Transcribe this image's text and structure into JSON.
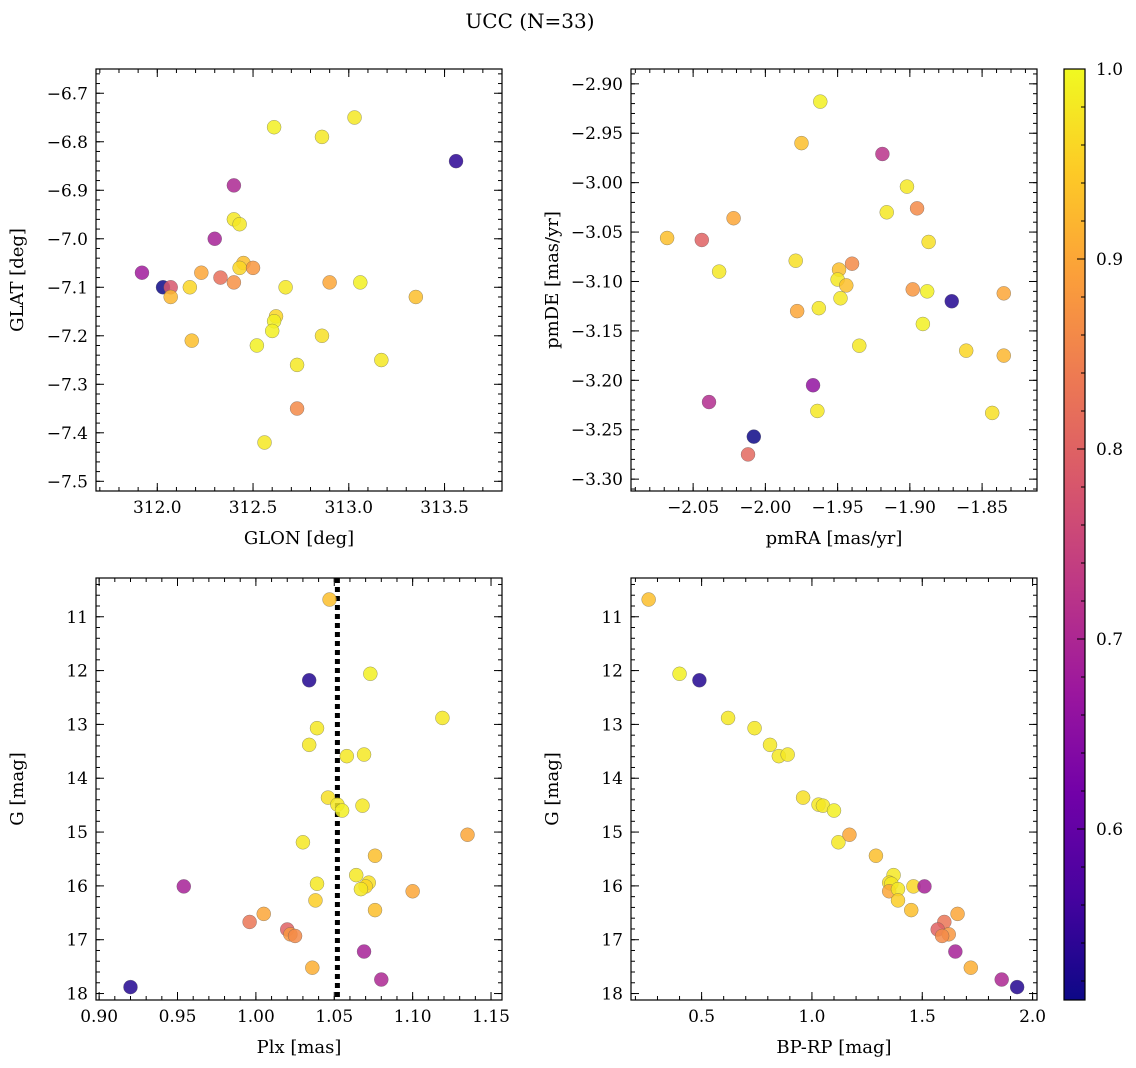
{
  "figure": {
    "title": "UCC (N=33)"
  },
  "colorbar": {
    "min": 0.51,
    "max": 1.0,
    "ticks": [
      0.6,
      0.7,
      0.8,
      0.9,
      1.0
    ],
    "tick_labels": [
      "0.6",
      "0.7",
      "0.8",
      "0.9",
      "1.0"
    ],
    "colormap": "plasma",
    "stops": [
      "#0d0887",
      "#46039f",
      "#7201a8",
      "#9c179e",
      "#bd3786",
      "#d8576b",
      "#ed7953",
      "#fb9f3a",
      "#fdca26",
      "#f0f921"
    ]
  },
  "chart_data": [
    {
      "id": "glon-glat",
      "type": "scatter",
      "xlabel": "GLON [deg]",
      "ylabel": "GLAT [deg]",
      "xlim": [
        311.68,
        313.8
      ],
      "ylim": [
        -7.52,
        -6.65
      ],
      "y_inverted": false,
      "x_ticks": [
        312.0,
        312.5,
        313.0,
        313.5
      ],
      "x_tick_labels": [
        "312.0",
        "312.5",
        "313.0",
        "313.5"
      ],
      "y_ticks": [
        -6.7,
        -6.8,
        -6.9,
        -7.0,
        -7.1,
        -7.2,
        -7.3,
        -7.4,
        -7.5
      ],
      "y_tick_labels": [
        "−6.7",
        "−6.8",
        "−6.9",
        "−7.0",
        "−7.1",
        "−7.2",
        "−7.3",
        "−7.4",
        "−7.5"
      ],
      "x_minor_step": 0.1,
      "y_minor_step": 0.02,
      "points": [
        {
          "x": 312.61,
          "y": -6.77,
          "c": 0.99
        },
        {
          "x": 312.86,
          "y": -6.79,
          "c": 0.98
        },
        {
          "x": 313.03,
          "y": -6.75,
          "c": 0.98
        },
        {
          "x": 313.56,
          "y": -6.84,
          "c": 0.54
        },
        {
          "x": 312.4,
          "y": -6.89,
          "c": 0.7
        },
        {
          "x": 312.4,
          "y": -6.96,
          "c": 0.98
        },
        {
          "x": 312.43,
          "y": -6.97,
          "c": 0.98
        },
        {
          "x": 312.3,
          "y": -7.0,
          "c": 0.69
        },
        {
          "x": 311.92,
          "y": -7.07,
          "c": 0.68
        },
        {
          "x": 312.03,
          "y": -7.1,
          "c": 0.51
        },
        {
          "x": 312.07,
          "y": -7.1,
          "c": 0.78
        },
        {
          "x": 312.07,
          "y": -7.12,
          "c": 0.92
        },
        {
          "x": 312.23,
          "y": -7.07,
          "c": 0.9
        },
        {
          "x": 312.33,
          "y": -7.08,
          "c": 0.82
        },
        {
          "x": 312.17,
          "y": -7.1,
          "c": 0.96
        },
        {
          "x": 312.4,
          "y": -7.09,
          "c": 0.87
        },
        {
          "x": 312.45,
          "y": -7.05,
          "c": 0.93
        },
        {
          "x": 312.43,
          "y": -7.06,
          "c": 0.96
        },
        {
          "x": 312.5,
          "y": -7.06,
          "c": 0.88
        },
        {
          "x": 312.67,
          "y": -7.1,
          "c": 0.98
        },
        {
          "x": 312.9,
          "y": -7.09,
          "c": 0.9
        },
        {
          "x": 313.06,
          "y": -7.09,
          "c": 0.99
        },
        {
          "x": 313.35,
          "y": -7.12,
          "c": 0.93
        },
        {
          "x": 312.18,
          "y": -7.21,
          "c": 0.93
        },
        {
          "x": 312.62,
          "y": -7.16,
          "c": 0.96
        },
        {
          "x": 312.61,
          "y": -7.17,
          "c": 0.99
        },
        {
          "x": 312.6,
          "y": -7.19,
          "c": 0.99
        },
        {
          "x": 312.52,
          "y": -7.22,
          "c": 0.99
        },
        {
          "x": 312.86,
          "y": -7.2,
          "c": 0.97
        },
        {
          "x": 313.17,
          "y": -7.25,
          "c": 0.98
        },
        {
          "x": 312.73,
          "y": -7.26,
          "c": 0.98
        },
        {
          "x": 312.73,
          "y": -7.35,
          "c": 0.86
        },
        {
          "x": 312.56,
          "y": -7.42,
          "c": 0.98
        }
      ]
    },
    {
      "id": "pmra-pmde",
      "type": "scatter",
      "xlabel": "pmRA [mas/yr]",
      "ylabel": "pmDE [mas/yr]",
      "xlim": [
        -2.093,
        -1.812
      ],
      "ylim": [
        -3.312,
        -2.885
      ],
      "y_inverted": false,
      "x_ticks": [
        -2.05,
        -2.0,
        -1.95,
        -1.9,
        -1.85
      ],
      "x_tick_labels": [
        "−2.05",
        "−2.00",
        "−1.95",
        "−1.90",
        "−1.85"
      ],
      "y_ticks": [
        -2.9,
        -2.95,
        -3.0,
        -3.05,
        -3.1,
        -3.15,
        -3.2,
        -3.25,
        -3.3
      ],
      "y_tick_labels": [
        "−2.90",
        "−2.95",
        "−3.00",
        "−3.05",
        "−3.10",
        "−3.15",
        "−3.20",
        "−3.25",
        "−3.30"
      ],
      "x_minor_step": 0.01,
      "y_minor_step": 0.01,
      "points": [
        {
          "x": -1.962,
          "y": -2.918,
          "c": 0.99
        },
        {
          "x": -1.975,
          "y": -2.96,
          "c": 0.93
        },
        {
          "x": -1.919,
          "y": -2.971,
          "c": 0.72
        },
        {
          "x": -1.902,
          "y": -3.004,
          "c": 0.98
        },
        {
          "x": -1.916,
          "y": -3.03,
          "c": 0.98
        },
        {
          "x": -1.895,
          "y": -3.026,
          "c": 0.86
        },
        {
          "x": -2.068,
          "y": -3.056,
          "c": 0.93
        },
        {
          "x": -2.044,
          "y": -3.058,
          "c": 0.8
        },
        {
          "x": -2.022,
          "y": -3.036,
          "c": 0.9
        },
        {
          "x": -1.887,
          "y": -3.06,
          "c": 0.97
        },
        {
          "x": -2.032,
          "y": -3.09,
          "c": 0.98
        },
        {
          "x": -1.979,
          "y": -3.079,
          "c": 0.97
        },
        {
          "x": -1.949,
          "y": -3.088,
          "c": 0.93
        },
        {
          "x": -1.94,
          "y": -3.082,
          "c": 0.86
        },
        {
          "x": -1.95,
          "y": -3.098,
          "c": 0.98
        },
        {
          "x": -1.944,
          "y": -3.104,
          "c": 0.93
        },
        {
          "x": -1.898,
          "y": -3.108,
          "c": 0.88
        },
        {
          "x": -1.888,
          "y": -3.11,
          "c": 0.99
        },
        {
          "x": -1.835,
          "y": -3.112,
          "c": 0.9
        },
        {
          "x": -1.948,
          "y": -3.117,
          "c": 0.98
        },
        {
          "x": -1.871,
          "y": -3.12,
          "c": 0.53
        },
        {
          "x": -1.978,
          "y": -3.13,
          "c": 0.9
        },
        {
          "x": -1.963,
          "y": -3.127,
          "c": 0.98
        },
        {
          "x": -1.891,
          "y": -3.143,
          "c": 0.99
        },
        {
          "x": -1.935,
          "y": -3.165,
          "c": 0.98
        },
        {
          "x": -1.861,
          "y": -3.17,
          "c": 0.96
        },
        {
          "x": -1.835,
          "y": -3.175,
          "c": 0.92
        },
        {
          "x": -1.967,
          "y": -3.205,
          "c": 0.66
        },
        {
          "x": -2.039,
          "y": -3.222,
          "c": 0.71
        },
        {
          "x": -1.964,
          "y": -3.231,
          "c": 0.98
        },
        {
          "x": -1.843,
          "y": -3.233,
          "c": 0.97
        },
        {
          "x": -2.008,
          "y": -3.257,
          "c": 0.51
        },
        {
          "x": -2.012,
          "y": -3.275,
          "c": 0.81
        }
      ]
    },
    {
      "id": "plx-g",
      "type": "scatter",
      "xlabel": "Plx [mas]",
      "ylabel": "G [mag]",
      "xlim": [
        0.898,
        1.157
      ],
      "ylim": [
        10.28,
        18.12
      ],
      "y_inverted": true,
      "x_ticks": [
        0.9,
        0.95,
        1.0,
        1.05,
        1.1,
        1.15
      ],
      "x_tick_labels": [
        "0.90",
        "0.95",
        "1.00",
        "1.05",
        "1.10",
        "1.15"
      ],
      "y_ticks": [
        11,
        12,
        13,
        14,
        15,
        16,
        17,
        18
      ],
      "y_tick_labels": [
        "11",
        "12",
        "13",
        "14",
        "15",
        "16",
        "17",
        "18"
      ],
      "x_minor_step": 0.01,
      "y_minor_step": 0.2,
      "vline": 1.052,
      "points": [
        {
          "x": 1.047,
          "y": 10.68,
          "c": 0.93
        },
        {
          "x": 1.034,
          "y": 12.18,
          "c": 0.53
        },
        {
          "x": 1.073,
          "y": 12.06,
          "c": 0.99
        },
        {
          "x": 1.119,
          "y": 12.88,
          "c": 0.98
        },
        {
          "x": 1.039,
          "y": 13.07,
          "c": 0.98
        },
        {
          "x": 1.034,
          "y": 13.38,
          "c": 0.98
        },
        {
          "x": 1.058,
          "y": 13.59,
          "c": 0.98
        },
        {
          "x": 1.069,
          "y": 13.56,
          "c": 0.98
        },
        {
          "x": 1.046,
          "y": 14.36,
          "c": 0.97
        },
        {
          "x": 1.052,
          "y": 14.49,
          "c": 0.98
        },
        {
          "x": 1.055,
          "y": 14.6,
          "c": 0.99
        },
        {
          "x": 1.068,
          "y": 14.51,
          "c": 0.98
        },
        {
          "x": 1.03,
          "y": 15.19,
          "c": 0.98
        },
        {
          "x": 1.135,
          "y": 15.05,
          "c": 0.9
        },
        {
          "x": 1.076,
          "y": 15.44,
          "c": 0.93
        },
        {
          "x": 0.954,
          "y": 16.01,
          "c": 0.69
        },
        {
          "x": 1.039,
          "y": 15.96,
          "c": 0.98
        },
        {
          "x": 1.064,
          "y": 15.8,
          "c": 0.98
        },
        {
          "x": 1.072,
          "y": 15.94,
          "c": 0.97
        },
        {
          "x": 1.07,
          "y": 16.01,
          "c": 0.96
        },
        {
          "x": 1.067,
          "y": 16.06,
          "c": 0.98
        },
        {
          "x": 1.1,
          "y": 16.1,
          "c": 0.9
        },
        {
          "x": 1.038,
          "y": 16.27,
          "c": 0.95
        },
        {
          "x": 1.076,
          "y": 16.45,
          "c": 0.93
        },
        {
          "x": 1.005,
          "y": 16.52,
          "c": 0.9
        },
        {
          "x": 0.996,
          "y": 16.67,
          "c": 0.83
        },
        {
          "x": 1.02,
          "y": 16.81,
          "c": 0.8
        },
        {
          "x": 1.022,
          "y": 16.9,
          "c": 0.88
        },
        {
          "x": 1.025,
          "y": 16.93,
          "c": 0.86
        },
        {
          "x": 1.069,
          "y": 17.22,
          "c": 0.69
        },
        {
          "x": 1.036,
          "y": 17.52,
          "c": 0.91
        },
        {
          "x": 1.08,
          "y": 17.74,
          "c": 0.7
        },
        {
          "x": 0.92,
          "y": 17.88,
          "c": 0.53
        }
      ]
    },
    {
      "id": "bprp-g",
      "type": "scatter",
      "xlabel": "BP-RP [mag]",
      "ylabel": "G [mag]",
      "xlim": [
        0.18,
        2.02
      ],
      "ylim": [
        10.28,
        18.12
      ],
      "y_inverted": true,
      "x_ticks": [
        0.5,
        1.0,
        1.5,
        2.0
      ],
      "x_tick_labels": [
        "0.5",
        "1.0",
        "1.5",
        "2.0"
      ],
      "y_ticks": [
        11,
        12,
        13,
        14,
        15,
        16,
        17,
        18
      ],
      "y_tick_labels": [
        "11",
        "12",
        "13",
        "14",
        "15",
        "16",
        "17",
        "18"
      ],
      "x_minor_step": 0.1,
      "y_minor_step": 0.2,
      "points": [
        {
          "x": 0.26,
          "y": 10.68,
          "c": 0.93
        },
        {
          "x": 0.4,
          "y": 12.06,
          "c": 0.99
        },
        {
          "x": 0.49,
          "y": 12.18,
          "c": 0.53
        },
        {
          "x": 0.62,
          "y": 12.88,
          "c": 0.98
        },
        {
          "x": 0.74,
          "y": 13.07,
          "c": 0.98
        },
        {
          "x": 0.81,
          "y": 13.38,
          "c": 0.98
        },
        {
          "x": 0.85,
          "y": 13.59,
          "c": 0.98
        },
        {
          "x": 0.89,
          "y": 13.56,
          "c": 0.98
        },
        {
          "x": 0.96,
          "y": 14.36,
          "c": 0.97
        },
        {
          "x": 1.03,
          "y": 14.49,
          "c": 0.98
        },
        {
          "x": 1.05,
          "y": 14.51,
          "c": 0.98
        },
        {
          "x": 1.1,
          "y": 14.6,
          "c": 0.99
        },
        {
          "x": 1.12,
          "y": 15.19,
          "c": 0.98
        },
        {
          "x": 1.17,
          "y": 15.05,
          "c": 0.9
        },
        {
          "x": 1.29,
          "y": 15.44,
          "c": 0.93
        },
        {
          "x": 1.37,
          "y": 15.8,
          "c": 0.98
        },
        {
          "x": 1.35,
          "y": 15.94,
          "c": 0.97
        },
        {
          "x": 1.36,
          "y": 15.96,
          "c": 0.98
        },
        {
          "x": 1.35,
          "y": 16.1,
          "c": 0.9
        },
        {
          "x": 1.39,
          "y": 16.06,
          "c": 0.98
        },
        {
          "x": 1.46,
          "y": 16.01,
          "c": 0.96
        },
        {
          "x": 1.51,
          "y": 16.01,
          "c": 0.69
        },
        {
          "x": 1.39,
          "y": 16.27,
          "c": 0.95
        },
        {
          "x": 1.45,
          "y": 16.45,
          "c": 0.93
        },
        {
          "x": 1.66,
          "y": 16.52,
          "c": 0.9
        },
        {
          "x": 1.6,
          "y": 16.67,
          "c": 0.83
        },
        {
          "x": 1.57,
          "y": 16.81,
          "c": 0.8
        },
        {
          "x": 1.62,
          "y": 16.9,
          "c": 0.88
        },
        {
          "x": 1.59,
          "y": 16.93,
          "c": 0.86
        },
        {
          "x": 1.65,
          "y": 17.22,
          "c": 0.69
        },
        {
          "x": 1.72,
          "y": 17.52,
          "c": 0.91
        },
        {
          "x": 1.86,
          "y": 17.74,
          "c": 0.7
        },
        {
          "x": 1.93,
          "y": 17.88,
          "c": 0.53
        }
      ]
    }
  ]
}
